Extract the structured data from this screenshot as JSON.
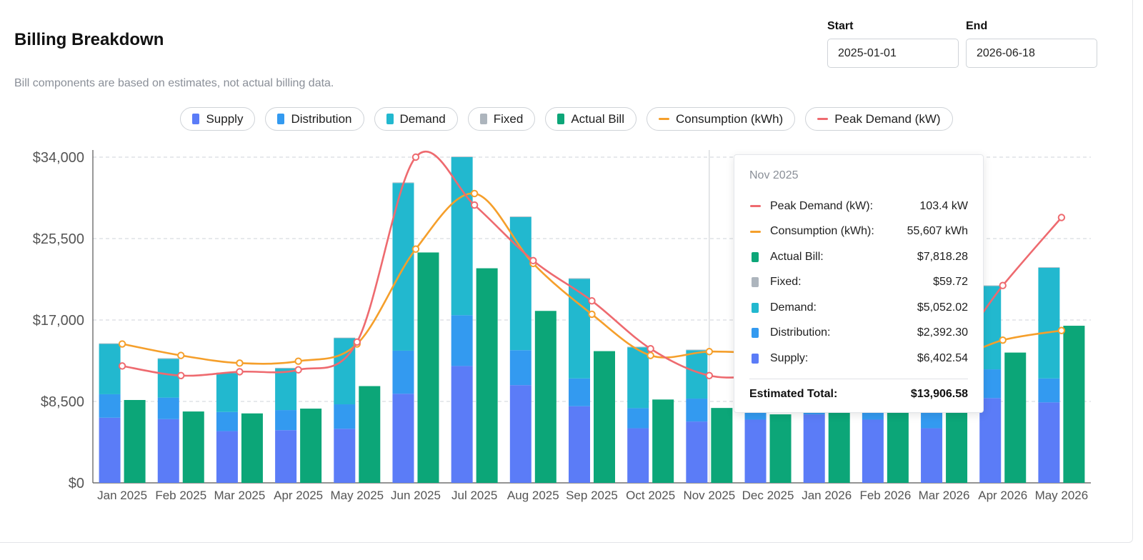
{
  "header": {
    "title": "Billing Breakdown",
    "subtitle": "Bill components are based on estimates, not actual billing data."
  },
  "date_range": {
    "start_label": "Start",
    "start_value": "2025-01-01",
    "end_label": "End",
    "end_value": "2026-06-18"
  },
  "legend": [
    {
      "label": "Supply",
      "kind": "box",
      "color": "#5b7cf7"
    },
    {
      "label": "Distribution",
      "kind": "box",
      "color": "#339af0"
    },
    {
      "label": "Demand",
      "kind": "box",
      "color": "#22b8cf"
    },
    {
      "label": "Fixed",
      "kind": "box",
      "color": "#adb5bd"
    },
    {
      "label": "Actual Bill",
      "kind": "box",
      "color": "#0ca678"
    },
    {
      "label": "Consumption (kWh)",
      "kind": "line",
      "color": "#f59f2b"
    },
    {
      "label": "Peak Demand (kW)",
      "kind": "line",
      "color": "#ee6a6f"
    }
  ],
  "tooltip": {
    "title": "Nov 2025",
    "rows": [
      {
        "label": "Peak Demand (kW):",
        "value": "103.4 kW",
        "kind": "line",
        "color": "#ee6a6f"
      },
      {
        "label": "Consumption (kWh):",
        "value": "55,607 kWh",
        "kind": "line",
        "color": "#f59f2b"
      },
      {
        "label": "Actual Bill:",
        "value": "$7,818.28",
        "kind": "box",
        "color": "#0ca678"
      },
      {
        "label": "Fixed:",
        "value": "$59.72",
        "kind": "box",
        "color": "#adb5bd"
      },
      {
        "label": "Demand:",
        "value": "$5,052.02",
        "kind": "box",
        "color": "#22b8cf"
      },
      {
        "label": "Distribution:",
        "value": "$2,392.30",
        "kind": "box",
        "color": "#339af0"
      },
      {
        "label": "Supply:",
        "value": "$6,402.54",
        "kind": "box",
        "color": "#5b7cf7"
      }
    ],
    "total_label": "Estimated Total:",
    "total_value": "$13,906.58"
  },
  "chart_data": {
    "type": "bar",
    "stacked": true,
    "categories": [
      "Jan 2025",
      "Feb 2025",
      "Mar 2025",
      "Apr 2025",
      "May 2025",
      "Jun 2025",
      "Jul 2025",
      "Aug 2025",
      "Sep 2025",
      "Oct 2025",
      "Nov 2025",
      "Dec 2025",
      "Jan 2026",
      "Feb 2026",
      "Mar 2026",
      "Apr 2026",
      "May 2026"
    ],
    "y_ticks": [
      "$0",
      "$8,500",
      "$17,000",
      "$25,500",
      "$34,000"
    ],
    "ylim": [
      0,
      34000
    ],
    "grid": true,
    "stack_series": [
      {
        "name": "Supply",
        "color": "#5b7cf7",
        "values": [
          6800,
          6650,
          5400,
          5500,
          5650,
          9300,
          12200,
          10200,
          8000,
          5700,
          6402.54,
          6600,
          7150,
          6600,
          5700,
          8850,
          8400
        ]
      },
      {
        "name": "Distribution",
        "color": "#339af0",
        "values": [
          2450,
          2250,
          2000,
          2100,
          2550,
          4500,
          5300,
          3650,
          2900,
          2100,
          2392.3,
          2100,
          2100,
          1900,
          2200,
          3000,
          2500
        ]
      },
      {
        "name": "Demand",
        "color": "#22b8cf",
        "values": [
          5250,
          4050,
          4050,
          4350,
          6900,
          17500,
          16500,
          13900,
          10400,
          6350,
          5052.02,
          0,
          0,
          0,
          0,
          8700,
          11550
        ]
      },
      {
        "name": "Fixed",
        "color": "#adb5bd",
        "values": [
          60,
          60,
          60,
          60,
          60,
          60,
          60,
          60,
          60,
          60,
          59.72,
          60,
          60,
          60,
          60,
          60,
          60
        ]
      }
    ],
    "actual_bill": {
      "name": "Actual Bill",
      "color": "#0ca678",
      "values": [
        8650,
        7450,
        7250,
        7750,
        10100,
        24050,
        22400,
        17950,
        13750,
        8700,
        7818.28,
        7150,
        8100,
        7950,
        8400,
        13600,
        16400
      ]
    },
    "lines": [
      {
        "name": "Consumption (kWh)",
        "color": "#f59f2b",
        "values": [
          14500,
          13300,
          12500,
          12700,
          14500,
          24400,
          30200,
          22900,
          17600,
          13300,
          13700,
          13500,
          13200,
          12800,
          12700,
          14900,
          15900
        ]
      },
      {
        "name": "Peak Demand (kW)",
        "color": "#ee6a6f",
        "values": [
          12200,
          11200,
          11600,
          11800,
          14700,
          34000,
          29000,
          23200,
          19000,
          14000,
          11200,
          11200,
          11200,
          11200,
          12800,
          20600,
          27700
        ]
      }
    ],
    "hover_category": "Nov 2025"
  }
}
